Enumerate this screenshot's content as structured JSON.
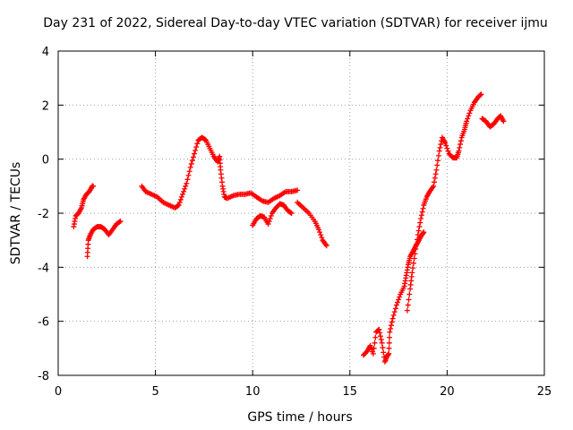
{
  "chart_data": {
    "type": "scatter",
    "title": "Day 231 of 2022, Sidereal Day-to-day VTEC variation (SDTVAR) for receiver ijmu",
    "xlabel": "GPS time / hours",
    "ylabel": "SDTVAR / TECUs",
    "xlim": [
      0,
      25
    ],
    "ylim": [
      -8,
      4
    ],
    "x_ticks": [
      0,
      5,
      10,
      15,
      20,
      25
    ],
    "y_ticks": [
      -8,
      -6,
      -4,
      -2,
      0,
      2,
      4
    ],
    "grid": true,
    "marker": "plus",
    "color": "#ff0000",
    "series": [
      {
        "name": "segment-1",
        "points": [
          [
            0.8,
            -2.5
          ],
          [
            0.9,
            -2.1
          ],
          [
            1.05,
            -2.0
          ],
          [
            1.2,
            -1.8
          ],
          [
            1.3,
            -1.5
          ],
          [
            1.45,
            -1.3
          ],
          [
            1.6,
            -1.2
          ],
          [
            1.75,
            -1.0
          ],
          [
            1.8,
            -1.0
          ]
        ]
      },
      {
        "name": "segment-2",
        "points": [
          [
            1.5,
            -3.6
          ],
          [
            1.55,
            -3.0
          ],
          [
            1.65,
            -2.8
          ],
          [
            1.8,
            -2.6
          ],
          [
            2.0,
            -2.5
          ],
          [
            2.2,
            -2.5
          ],
          [
            2.4,
            -2.6
          ],
          [
            2.6,
            -2.8
          ],
          [
            2.8,
            -2.6
          ],
          [
            3.0,
            -2.4
          ],
          [
            3.2,
            -2.3
          ]
        ]
      },
      {
        "name": "segment-3",
        "points": [
          [
            4.3,
            -1.0
          ],
          [
            4.5,
            -1.2
          ],
          [
            4.8,
            -1.3
          ],
          [
            5.1,
            -1.4
          ],
          [
            5.4,
            -1.6
          ],
          [
            5.7,
            -1.7
          ],
          [
            6.0,
            -1.8
          ],
          [
            6.2,
            -1.7
          ],
          [
            6.4,
            -1.3
          ],
          [
            6.6,
            -0.9
          ],
          [
            6.8,
            -0.3
          ],
          [
            7.0,
            0.2
          ],
          [
            7.2,
            0.7
          ],
          [
            7.4,
            0.8
          ],
          [
            7.6,
            0.7
          ],
          [
            7.8,
            0.4
          ],
          [
            8.0,
            0.1
          ],
          [
            8.2,
            -0.1
          ],
          [
            8.3,
            0.1
          ],
          [
            8.35,
            -0.4
          ],
          [
            8.45,
            -1.0
          ],
          [
            8.55,
            -1.4
          ],
          [
            8.7,
            -1.45
          ],
          [
            9.0,
            -1.35
          ],
          [
            9.3,
            -1.3
          ],
          [
            9.6,
            -1.3
          ],
          [
            9.9,
            -1.25
          ],
          [
            10.2,
            -1.4
          ],
          [
            10.5,
            -1.55
          ],
          [
            10.8,
            -1.6
          ],
          [
            11.1,
            -1.45
          ],
          [
            11.4,
            -1.35
          ],
          [
            11.7,
            -1.2
          ],
          [
            12.0,
            -1.2
          ],
          [
            12.3,
            -1.15
          ]
        ]
      },
      {
        "name": "segment-4",
        "points": [
          [
            10.0,
            -2.45
          ],
          [
            10.2,
            -2.2
          ],
          [
            10.4,
            -2.1
          ],
          [
            10.6,
            -2.15
          ],
          [
            10.8,
            -2.4
          ],
          [
            11.0,
            -2.0
          ],
          [
            11.2,
            -1.8
          ],
          [
            11.4,
            -1.65
          ],
          [
            11.6,
            -1.7
          ],
          [
            11.8,
            -1.9
          ],
          [
            12.0,
            -2.0
          ]
        ]
      },
      {
        "name": "segment-5",
        "points": [
          [
            12.3,
            -1.6
          ],
          [
            12.6,
            -1.8
          ],
          [
            12.9,
            -2.0
          ],
          [
            13.2,
            -2.3
          ],
          [
            13.4,
            -2.6
          ],
          [
            13.6,
            -3.0
          ],
          [
            13.8,
            -3.2
          ]
        ]
      },
      {
        "name": "segment-6",
        "points": [
          [
            15.7,
            -7.25
          ],
          [
            15.9,
            -7.1
          ],
          [
            16.05,
            -6.9
          ],
          [
            16.2,
            -7.2
          ],
          [
            16.35,
            -6.4
          ],
          [
            16.5,
            -6.3
          ],
          [
            16.65,
            -6.8
          ],
          [
            16.8,
            -7.5
          ],
          [
            16.9,
            -7.3
          ],
          [
            17.0,
            -7.2
          ],
          [
            17.05,
            -6.4
          ],
          [
            17.2,
            -5.9
          ],
          [
            17.4,
            -5.4
          ],
          [
            17.6,
            -5.0
          ],
          [
            17.8,
            -4.7
          ],
          [
            17.9,
            -4.3
          ],
          [
            18.0,
            -3.9
          ],
          [
            18.1,
            -3.6
          ],
          [
            18.25,
            -3.4
          ],
          [
            18.4,
            -3.2
          ],
          [
            18.55,
            -3.0
          ],
          [
            18.7,
            -2.8
          ],
          [
            18.8,
            -2.7
          ]
        ]
      },
      {
        "name": "segment-7",
        "points": [
          [
            17.95,
            -5.6
          ],
          [
            18.1,
            -4.8
          ],
          [
            18.2,
            -4.2
          ],
          [
            18.35,
            -3.5
          ],
          [
            18.5,
            -2.8
          ],
          [
            18.65,
            -2.2
          ],
          [
            18.8,
            -1.7
          ],
          [
            18.95,
            -1.4
          ],
          [
            19.1,
            -1.2
          ],
          [
            19.3,
            -1.0
          ],
          [
            19.45,
            -0.4
          ],
          [
            19.6,
            0.3
          ],
          [
            19.75,
            0.8
          ],
          [
            19.9,
            0.6
          ],
          [
            20.1,
            0.2
          ],
          [
            20.3,
            0.05
          ],
          [
            20.5,
            0.05
          ],
          [
            20.6,
            0.3
          ],
          [
            20.75,
            0.8
          ],
          [
            20.9,
            1.1
          ],
          [
            21.0,
            1.4
          ],
          [
            21.2,
            1.8
          ],
          [
            21.4,
            2.1
          ],
          [
            21.6,
            2.3
          ],
          [
            21.75,
            2.4
          ]
        ]
      },
      {
        "name": "segment-8",
        "points": [
          [
            21.8,
            1.5
          ],
          [
            22.0,
            1.4
          ],
          [
            22.2,
            1.2
          ],
          [
            22.4,
            1.3
          ],
          [
            22.6,
            1.5
          ],
          [
            22.75,
            1.6
          ],
          [
            22.9,
            1.4
          ]
        ]
      }
    ]
  }
}
